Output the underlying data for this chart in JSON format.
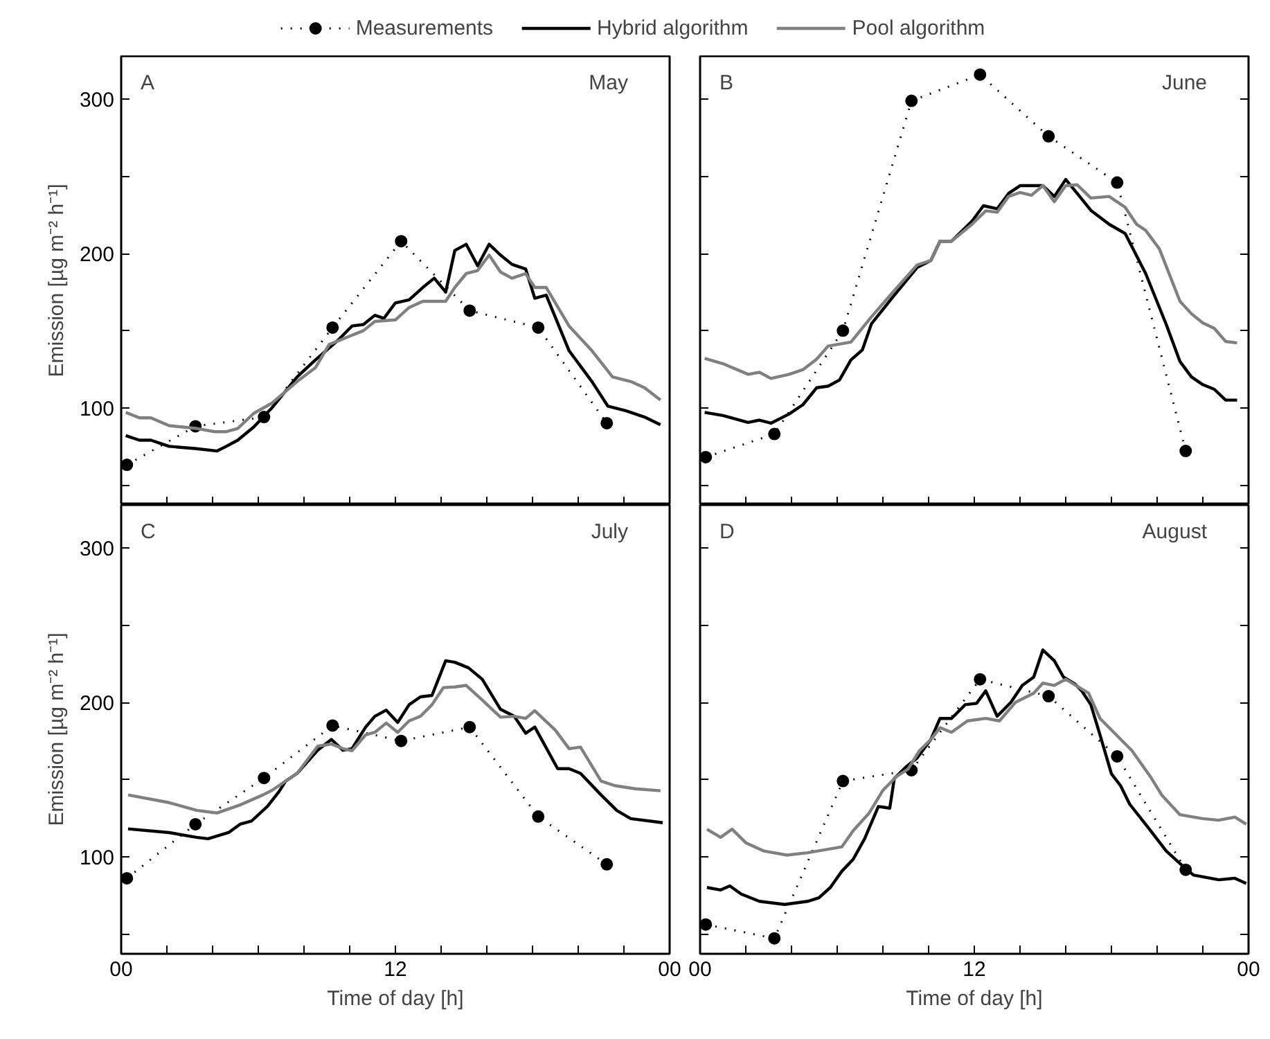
{
  "chart_data": [
    {
      "type": "line",
      "annotations": [
        "A",
        "May"
      ],
      "ylabel": "Emission [µg m⁻² h⁻¹]",
      "legend": "top",
      "tick_labels": "y",
      "grid": false,
      "xlim": [
        0,
        24
      ],
      "xticks": [
        {
          "value": 0,
          "label": null
        },
        {
          "value": 2,
          "label": null
        },
        {
          "value": 4,
          "label": null
        },
        {
          "value": 6,
          "label": null
        },
        {
          "value": 8,
          "label": null
        },
        {
          "value": 10,
          "label": null
        },
        {
          "value": 12,
          "label": null
        },
        {
          "value": 14,
          "label": null
        },
        {
          "value": 16,
          "label": null
        },
        {
          "value": 18,
          "label": null
        },
        {
          "value": 20,
          "label": null
        },
        {
          "value": 22,
          "label": null
        },
        {
          "value": 24,
          "label": null
        }
      ],
      "ylim": [
        37,
        328
      ],
      "yticks": [
        {
          "value": 50,
          "label": null
        },
        100,
        {
          "value": 150,
          "label": null
        },
        200,
        {
          "value": 250,
          "label": null
        },
        300
      ],
      "series": [
        {
          "name": "Measurements",
          "color": "#000000",
          "marker": "circle",
          "line_style": "dotted",
          "x": [
            0.25,
            3.25,
            6.25,
            9.25,
            12.25,
            15.25,
            18.25,
            21.25
          ],
          "values": [
            63,
            88,
            94,
            152,
            208,
            163,
            152,
            90
          ]
        },
        {
          "name": "Hybrid algorithm",
          "color": "#000000",
          "x": [
            0.2,
            0.8,
            1.3,
            2.1,
            3.3,
            4.2,
            4.6,
            5.1,
            5.8,
            6.6,
            7.7,
            8.5,
            9.5,
            10.1,
            10.6,
            11.1,
            11.5,
            12.0,
            12.6,
            13.2,
            13.7,
            14.2,
            14.6,
            15.1,
            15.6,
            16.1,
            16.6,
            17.1,
            17.7,
            18.1,
            18.6,
            19.6,
            20.6,
            21.3,
            22.1,
            22.9,
            23.6
          ],
          "values": [
            82,
            79,
            79,
            75,
            73.5,
            72,
            75,
            79,
            87.5,
            100,
            120,
            131,
            144,
            153,
            154,
            160,
            158,
            168,
            170,
            178,
            184,
            175,
            202,
            206,
            192,
            206,
            199,
            193,
            190,
            171,
            173,
            137,
            117,
            101,
            98,
            94,
            89
          ]
        },
        {
          "name": "Pool algorithm",
          "color": "#808080",
          "x": [
            0.2,
            0.8,
            1.3,
            2.1,
            3.3,
            4.1,
            4.6,
            5.1,
            5.8,
            6.6,
            7.7,
            8.5,
            9.1,
            10.1,
            10.6,
            11.1,
            12.0,
            12.6,
            13.2,
            14.2,
            14.6,
            15.1,
            15.6,
            16.1,
            16.6,
            17.1,
            17.7,
            18.1,
            18.6,
            19.6,
            20.6,
            21.5,
            22.3,
            22.9,
            23.6
          ],
          "values": [
            97,
            93.5,
            93.5,
            88.4,
            86.6,
            84.5,
            84.5,
            86.6,
            96.4,
            103,
            117,
            126,
            141,
            147,
            150,
            156,
            157,
            165,
            169,
            169,
            178,
            187,
            189,
            199,
            188,
            184,
            187,
            178,
            178,
            153,
            137,
            120,
            117,
            113,
            105
          ]
        }
      ]
    },
    {
      "type": "line",
      "annotations": [
        "B",
        "June"
      ],
      "tick_labels": false,
      "grid": false,
      "xlim": [
        0,
        24
      ],
      "xticks": [
        {
          "value": 0,
          "label": null
        },
        {
          "value": 2,
          "label": null
        },
        {
          "value": 4,
          "label": null
        },
        {
          "value": 6,
          "label": null
        },
        {
          "value": 8,
          "label": null
        },
        {
          "value": 10,
          "label": null
        },
        {
          "value": 12,
          "label": null
        },
        {
          "value": 14,
          "label": null
        },
        {
          "value": 16,
          "label": null
        },
        {
          "value": 18,
          "label": null
        },
        {
          "value": 20,
          "label": null
        },
        {
          "value": 22,
          "label": null
        },
        {
          "value": 24,
          "label": null
        }
      ],
      "ylim": [
        37,
        328
      ],
      "yticks": [
        {
          "value": 50,
          "label": null
        },
        {
          "value": 100,
          "label": null
        },
        {
          "value": 150,
          "label": null
        },
        {
          "value": 200,
          "label": null
        },
        {
          "value": 250,
          "label": null
        },
        {
          "value": 300,
          "label": null
        }
      ],
      "series": [
        {
          "color": "#000000",
          "marker": "circle",
          "line_style": "dotted",
          "x": [
            0.25,
            3.25,
            6.25,
            9.25,
            12.25,
            15.25,
            18.25,
            21.25
          ],
          "values": [
            68,
            83,
            150,
            299,
            316,
            276,
            246,
            72
          ]
        },
        {
          "color": "#000000",
          "x": [
            0.2,
            1.0,
            2.1,
            2.6,
            3.1,
            3.9,
            4.5,
            5.1,
            5.6,
            6.1,
            6.6,
            7.1,
            7.5,
            8.5,
            9.5,
            10.1,
            10.5,
            11.0,
            11.9,
            12.4,
            13.0,
            13.5,
            14.0,
            15.0,
            15.5,
            16.0,
            16.5,
            17.1,
            17.9,
            18.6,
            19.5,
            20.4,
            21.0,
            21.5,
            22.0,
            22.5,
            23.0,
            23.5
          ],
          "values": [
            97,
            95,
            90.5,
            92,
            90,
            96,
            102,
            113,
            114,
            118,
            131,
            137.5,
            154.5,
            173,
            191,
            195.5,
            208,
            208,
            221,
            231,
            229,
            239,
            244,
            244,
            237,
            248,
            239,
            228,
            219,
            213,
            187,
            154,
            130,
            120,
            115,
            112,
            105,
            105
          ]
        },
        {
          "color": "#808080",
          "x": [
            0.2,
            1.0,
            2.1,
            2.6,
            3.1,
            3.9,
            4.5,
            5.1,
            5.6,
            6.6,
            7.5,
            8.5,
            9.5,
            10.1,
            10.5,
            11.0,
            11.9,
            12.5,
            13.0,
            13.5,
            14.0,
            14.5,
            15.0,
            15.5,
            16.0,
            16.5,
            17.1,
            17.9,
            18.6,
            19.1,
            19.5,
            20.1,
            21.0,
            21.5,
            22.0,
            22.5,
            23.0,
            23.5
          ],
          "values": [
            132,
            128.6,
            121.7,
            123,
            119,
            121.7,
            124.7,
            131.5,
            140,
            142.6,
            159,
            176,
            192.6,
            195.5,
            208,
            208,
            219,
            227.7,
            226.8,
            237,
            239.6,
            237.8,
            244,
            233.6,
            244,
            244.6,
            236,
            237,
            230,
            219,
            215,
            203,
            169,
            161,
            155,
            151.5,
            143,
            142
          ]
        }
      ]
    },
    {
      "type": "line",
      "annotations": [
        "C",
        "July"
      ],
      "ylabel": "Emission [µg m⁻² h⁻¹]",
      "xlabel": "Time of day [h]",
      "grid": false,
      "xlim": [
        0,
        24
      ],
      "xticks": [
        {
          "value": 0,
          "label": "00"
        },
        {
          "value": 2,
          "label": null
        },
        {
          "value": 4,
          "label": null
        },
        {
          "value": 6,
          "label": null
        },
        {
          "value": 8,
          "label": null
        },
        {
          "value": 10,
          "label": null
        },
        {
          "value": 12,
          "label": "12"
        },
        {
          "value": 14,
          "label": null
        },
        {
          "value": 16,
          "label": null
        },
        {
          "value": 18,
          "label": null
        },
        {
          "value": 20,
          "label": null
        },
        {
          "value": 22,
          "label": null
        },
        {
          "value": 24,
          "label": "00"
        }
      ],
      "ylim": [
        37,
        328
      ],
      "yticks": [
        {
          "value": 50,
          "label": null
        },
        100,
        {
          "value": 150,
          "label": null
        },
        200,
        {
          "value": 250,
          "label": null
        },
        300
      ],
      "series": [
        {
          "color": "#000000",
          "marker": "circle",
          "line_style": "dotted",
          "x": [
            0.25,
            3.25,
            6.25,
            9.25,
            12.25,
            15.25,
            18.25,
            21.25
          ],
          "values": [
            86,
            121,
            151,
            185,
            175,
            184,
            126,
            95
          ]
        },
        {
          "color": "#000000",
          "x": [
            0.3,
            2.1,
            3.3,
            3.8,
            4.7,
            5.2,
            5.7,
            6.4,
            6.9,
            7.2,
            7.7,
            8.6,
            9.2,
            9.7,
            10.1,
            10.7,
            11.1,
            11.6,
            12.1,
            12.6,
            13.1,
            13.6,
            14.2,
            14.6,
            15.2,
            15.8,
            16.6,
            17.2,
            17.7,
            18.1,
            19.1,
            19.6,
            20.1,
            21.0,
            21.7,
            22.3,
            23.7
          ],
          "values": [
            118,
            115.6,
            112.5,
            111.6,
            115.6,
            121,
            123,
            132.6,
            142,
            149,
            154,
            169,
            176,
            169,
            170,
            184,
            191,
            195,
            187,
            198.5,
            203.6,
            204.5,
            227,
            226,
            222.4,
            215,
            195.5,
            191,
            180,
            184,
            157,
            157,
            154,
            140,
            129.8,
            124.6,
            122
          ]
        },
        {
          "color": "#808080",
          "x": [
            0.3,
            2.1,
            3.3,
            4.2,
            5.2,
            6.2,
            6.6,
            7.2,
            7.7,
            8.6,
            9.2,
            9.7,
            10.1,
            10.7,
            11.1,
            11.6,
            12.1,
            12.6,
            13.1,
            13.6,
            14.1,
            14.6,
            15.1,
            15.8,
            16.6,
            17.2,
            17.7,
            18.1,
            19.0,
            19.6,
            20.1,
            21.0,
            21.6,
            22.5,
            23.6
          ],
          "values": [
            140,
            135,
            130,
            128.3,
            133.5,
            140,
            143,
            149,
            154,
            171.6,
            173,
            170,
            168.7,
            179,
            180.6,
            186.6,
            180.6,
            188,
            191,
            198.5,
            209.6,
            210,
            211,
            201.5,
            190.4,
            191,
            189.6,
            194.6,
            182,
            170,
            171,
            149,
            146,
            144,
            142.7
          ]
        }
      ]
    },
    {
      "type": "line",
      "annotations": [
        "D",
        "August"
      ],
      "xlabel": "Time of day [h]",
      "tick_labels": "x",
      "grid": false,
      "xlim": [
        0,
        24
      ],
      "xticks": [
        {
          "value": 0,
          "label": "00"
        },
        {
          "value": 2,
          "label": null
        },
        {
          "value": 4,
          "label": null
        },
        {
          "value": 6,
          "label": null
        },
        {
          "value": 8,
          "label": null
        },
        {
          "value": 10,
          "label": null
        },
        {
          "value": 12,
          "label": "12"
        },
        {
          "value": 14,
          "label": null
        },
        {
          "value": 16,
          "label": null
        },
        {
          "value": 18,
          "label": null
        },
        {
          "value": 20,
          "label": null
        },
        {
          "value": 22,
          "label": null
        },
        {
          "value": 24,
          "label": "00"
        }
      ],
      "ylim": [
        37,
        328
      ],
      "yticks": [
        {
          "value": 50,
          "label": null
        },
        {
          "value": 100,
          "label": null
        },
        {
          "value": 150,
          "label": null
        },
        {
          "value": 200,
          "label": null
        },
        {
          "value": 250,
          "label": null
        },
        {
          "value": 300,
          "label": null
        }
      ],
      "series": [
        {
          "color": "#000000",
          "marker": "circle",
          "line_style": "dotted",
          "x": [
            0.25,
            3.25,
            6.25,
            9.25,
            12.25,
            15.25,
            18.25,
            21.25
          ],
          "values": [
            56,
            47,
            149,
            156,
            215,
            204,
            165,
            91.5
          ]
        },
        {
          "color": "#000000",
          "x": [
            0.3,
            0.9,
            1.3,
            1.8,
            2.6,
            3.7,
            4.7,
            5.2,
            5.7,
            6.2,
            6.7,
            7.2,
            7.8,
            8.3,
            8.5,
            9.0,
            9.5,
            10.1,
            10.5,
            11.0,
            11.6,
            12.1,
            12.5,
            13.0,
            13.6,
            14.1,
            14.6,
            15.0,
            15.5,
            15.9,
            16.4,
            16.7,
            17.1,
            17.5,
            18.0,
            18.4,
            18.8,
            19.6,
            20.4,
            21.3,
            21.6,
            22.7,
            23.4,
            23.9
          ],
          "values": [
            80,
            78.4,
            81,
            75.7,
            71,
            69,
            71,
            73.3,
            80,
            90.5,
            98.3,
            111.6,
            132.5,
            131.4,
            150.7,
            158,
            164,
            176,
            189.6,
            189.6,
            198.5,
            199.4,
            207.5,
            191,
            200,
            211,
            216.4,
            234,
            227,
            216.4,
            212,
            207.5,
            198.5,
            179,
            153.7,
            146,
            134,
            119,
            103.6,
            91.5,
            88,
            85,
            86,
            82.6
          ]
        },
        {
          "color": "#808080",
          "x": [
            0.3,
            0.9,
            1.4,
            2.0,
            2.8,
            3.8,
            4.7,
            6.2,
            6.7,
            7.4,
            8.0,
            8.6,
            9.1,
            9.6,
            10.1,
            10.5,
            11.0,
            11.7,
            12.5,
            13.1,
            13.8,
            14.6,
            15.0,
            15.5,
            16.0,
            17.0,
            17.5,
            18.9,
            19.7,
            20.2,
            21.0,
            22.0,
            22.7,
            23.4,
            23.9
          ],
          "values": [
            117.8,
            112.5,
            117.8,
            109,
            103.6,
            101,
            102.5,
            106.3,
            116.8,
            128.3,
            143,
            152,
            156.7,
            168.7,
            176,
            183.6,
            180.6,
            188,
            189.6,
            188,
            200,
            206,
            212.5,
            211,
            215,
            206,
            189.6,
            168.7,
            152,
            140,
            127.2,
            124.6,
            123.6,
            125.6,
            121
          ]
        }
      ]
    }
  ]
}
